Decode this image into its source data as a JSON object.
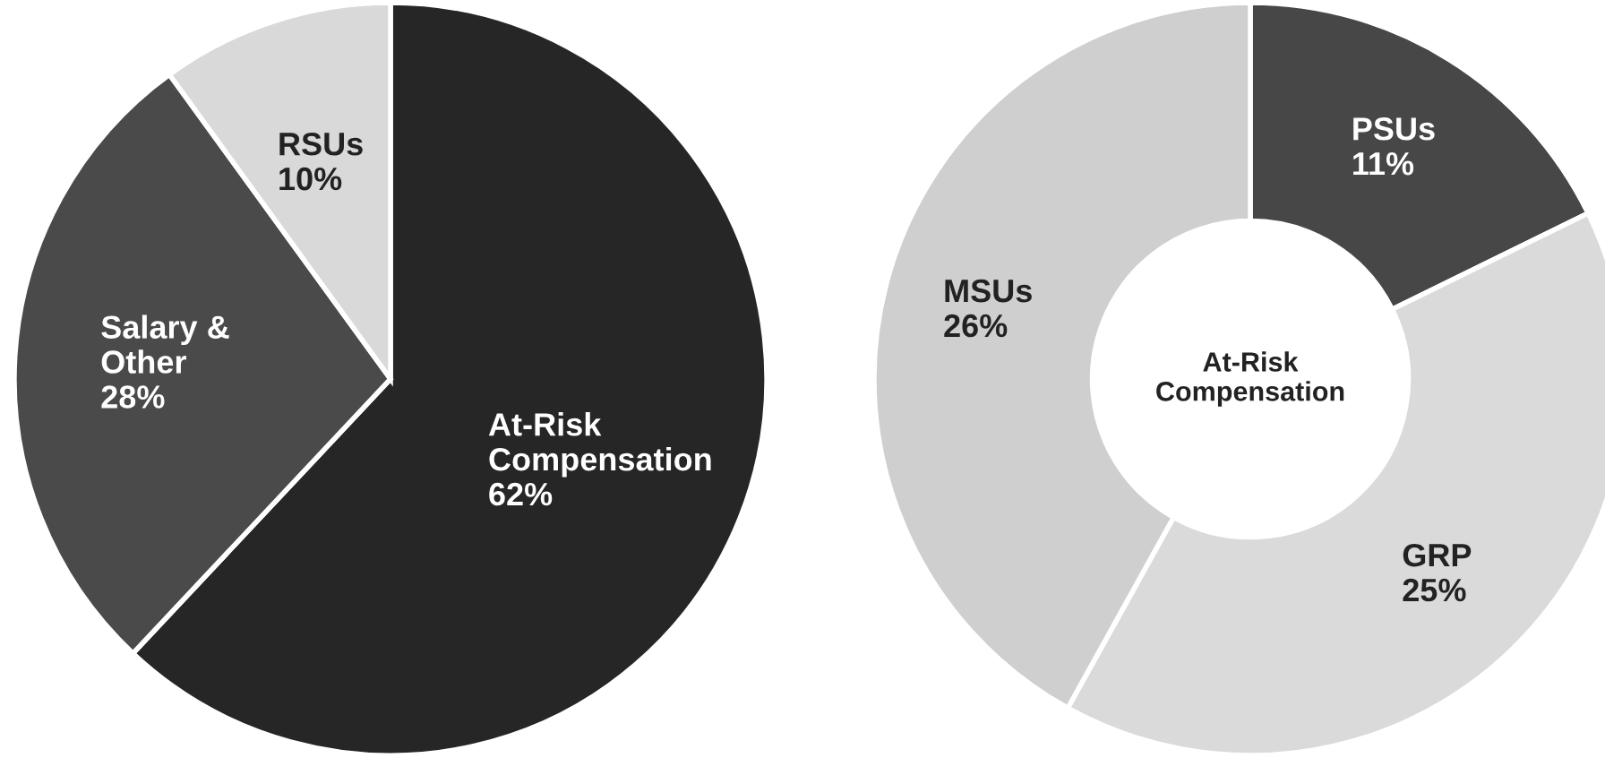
{
  "chart_data": [
    {
      "type": "pie",
      "categories": [
        "At-Risk\nCompensation",
        "Salary &\nOther",
        "RSUs"
      ],
      "values": [
        62,
        28,
        10
      ],
      "value_labels": [
        "62%",
        "28%",
        "10%"
      ],
      "colors": [
        "#262626",
        "#4a4a4a",
        "#d9d9d9"
      ]
    },
    {
      "type": "donut",
      "categories": [
        "PSUs",
        "GRP",
        "MSUs"
      ],
      "values": [
        11,
        25,
        26
      ],
      "value_labels": [
        "11%",
        "25%",
        "26%"
      ],
      "colors": [
        "#474747",
        "#dadada",
        "#cfcfcf"
      ],
      "annotations": [
        "At-Risk\nCompensation"
      ]
    }
  ]
}
